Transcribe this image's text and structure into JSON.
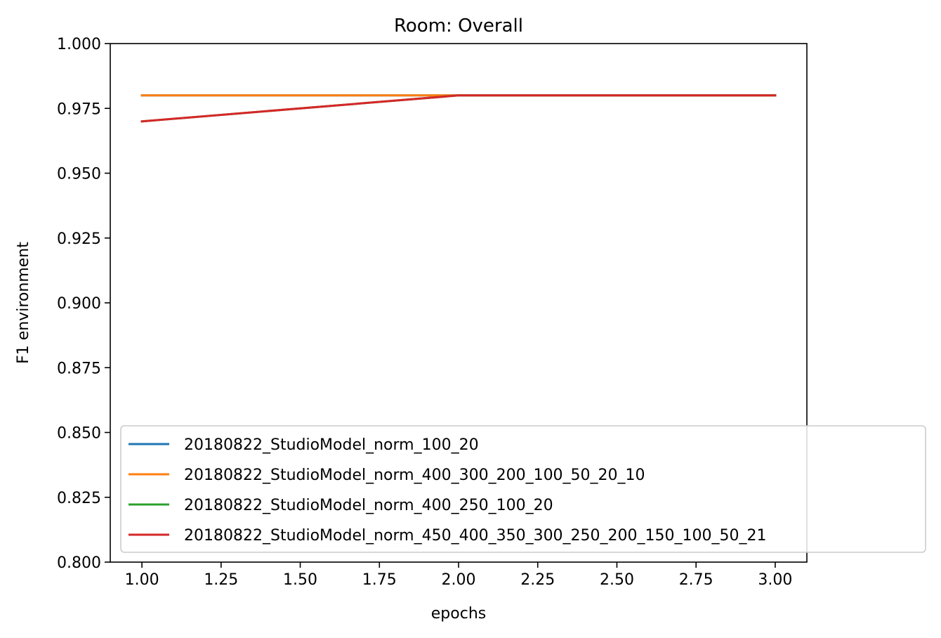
{
  "chart_data": {
    "type": "line",
    "title": "Room: Overall",
    "xlabel": "epochs",
    "ylabel": "F1 environment",
    "xlim": [
      0.9,
      3.1
    ],
    "ylim": [
      0.8,
      1.0
    ],
    "xticks": [
      1.0,
      1.25,
      1.5,
      1.75,
      2.0,
      2.25,
      2.5,
      2.75,
      3.0
    ],
    "xtick_labels": [
      "1.00",
      "1.25",
      "1.50",
      "1.75",
      "2.00",
      "2.25",
      "2.50",
      "2.75",
      "3.00"
    ],
    "yticks": [
      0.8,
      0.825,
      0.85,
      0.875,
      0.9,
      0.925,
      0.95,
      0.975,
      1.0
    ],
    "ytick_labels": [
      "0.800",
      "0.825",
      "0.850",
      "0.875",
      "0.900",
      "0.925",
      "0.950",
      "0.975",
      "1.000"
    ],
    "grid": false,
    "legend_position": "lower-right",
    "x": [
      1.0,
      2.0,
      3.0
    ],
    "series": [
      {
        "name": "20180822_StudioModel_norm_100_20",
        "values": [
          0.98,
          0.98,
          0.98
        ],
        "color": "#1f77b4"
      },
      {
        "name": "20180822_StudioModel_norm_400_300_200_100_50_20_10",
        "values": [
          0.98,
          0.98,
          0.98
        ],
        "color": "#ff7f0e"
      },
      {
        "name": "20180822_StudioModel_norm_400_250_100_20",
        "values": [
          0.97,
          0.98,
          0.98
        ],
        "color": "#2ca02c"
      },
      {
        "name": "20180822_StudioModel_norm_450_400_350_300_250_200_150_100_50_21",
        "values": [
          0.97,
          0.98,
          0.98
        ],
        "color": "#d62728"
      }
    ]
  }
}
